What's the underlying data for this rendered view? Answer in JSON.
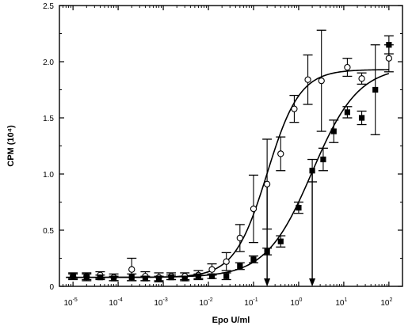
{
  "chart_data": {
    "type": "scatter",
    "title": "",
    "xlabel": "Epo U/ml",
    "ylabel": "CPM (10⁴)",
    "x_scale": "log",
    "xlim": [
      5e-06,
      200
    ],
    "ylim": [
      0,
      2.5
    ],
    "x_ticks": [
      {
        "value": 1e-05,
        "base": "10",
        "exp": "-5"
      },
      {
        "value": 0.0001,
        "base": "10",
        "exp": "-4"
      },
      {
        "value": 0.001,
        "base": "10",
        "exp": "-3"
      },
      {
        "value": 0.01,
        "base": "10",
        "exp": "-2"
      },
      {
        "value": 0.1,
        "base": "10",
        "exp": "-1"
      },
      {
        "value": 1,
        "base": "10",
        "exp": "0"
      },
      {
        "value": 10,
        "base": "10",
        "exp": "1"
      },
      {
        "value": 100,
        "base": "10",
        "exp": "2"
      }
    ],
    "y_ticks": [
      {
        "value": 0,
        "label": "0"
      },
      {
        "value": 0.5,
        "label": "0.5"
      },
      {
        "value": 1.0,
        "label": "1.0"
      },
      {
        "value": 1.5,
        "label": "1.5"
      },
      {
        "value": 2.0,
        "label": "2.0"
      },
      {
        "value": 2.5,
        "label": "2.5"
      }
    ],
    "grid": false,
    "legend": "none",
    "series": [
      {
        "marker": "open-circle",
        "fit": {
          "bottom": 0.08,
          "top": 1.93,
          "ec50": 0.2,
          "hill": 1.2
        },
        "points": [
          {
            "x": 1e-05,
            "y": 0.09,
            "err": 0.03
          },
          {
            "x": 2e-05,
            "y": 0.09,
            "err": 0.03
          },
          {
            "x": 4e-05,
            "y": 0.1,
            "err": 0.03
          },
          {
            "x": 8e-05,
            "y": 0.08,
            "err": 0.03
          },
          {
            "x": 0.0002,
            "y": 0.15,
            "err": 0.1
          },
          {
            "x": 0.0004,
            "y": 0.09,
            "err": 0.04
          },
          {
            "x": 0.0008,
            "y": 0.08,
            "err": 0.04
          },
          {
            "x": 0.0015,
            "y": 0.09,
            "err": 0.03
          },
          {
            "x": 0.003,
            "y": 0.09,
            "err": 0.03
          },
          {
            "x": 0.006,
            "y": 0.1,
            "err": 0.04
          },
          {
            "x": 0.012,
            "y": 0.15,
            "err": 0.05
          },
          {
            "x": 0.025,
            "y": 0.22,
            "err": 0.08
          },
          {
            "x": 0.05,
            "y": 0.43,
            "err": 0.12
          },
          {
            "x": 0.1,
            "y": 0.69,
            "err": 0.3
          },
          {
            "x": 0.2,
            "y": 0.91,
            "err": 0.4
          },
          {
            "x": 0.4,
            "y": 1.18,
            "err": 0.15
          },
          {
            "x": 0.8,
            "y": 1.58,
            "err": 0.12
          },
          {
            "x": 1.6,
            "y": 1.84,
            "err": 0.22
          },
          {
            "x": 3.2,
            "y": 1.83,
            "err": 0.45
          },
          {
            "x": 12,
            "y": 1.95,
            "err": 0.08
          },
          {
            "x": 25,
            "y": 1.85,
            "err": 0.05
          },
          {
            "x": 100,
            "y": 2.03,
            "err": 0.12
          }
        ]
      },
      {
        "marker": "filled-square",
        "fit": {
          "bottom": 0.08,
          "top": 1.96,
          "ec50": 2.0,
          "hill": 0.85
        },
        "points": [
          {
            "x": 1e-05,
            "y": 0.09,
            "err": 0.02
          },
          {
            "x": 2e-05,
            "y": 0.08,
            "err": 0.03
          },
          {
            "x": 4e-05,
            "y": 0.08,
            "err": 0.02
          },
          {
            "x": 8e-05,
            "y": 0.07,
            "err": 0.02
          },
          {
            "x": 0.0002,
            "y": 0.08,
            "err": 0.03
          },
          {
            "x": 0.0004,
            "y": 0.07,
            "err": 0.02
          },
          {
            "x": 0.0008,
            "y": 0.07,
            "err": 0.02
          },
          {
            "x": 0.0015,
            "y": 0.08,
            "err": 0.02
          },
          {
            "x": 0.003,
            "y": 0.07,
            "err": 0.02
          },
          {
            "x": 0.006,
            "y": 0.09,
            "err": 0.02
          },
          {
            "x": 0.012,
            "y": 0.09,
            "err": 0.02
          },
          {
            "x": 0.025,
            "y": 0.09,
            "err": 0.03
          },
          {
            "x": 0.05,
            "y": 0.18,
            "err": 0.03
          },
          {
            "x": 0.1,
            "y": 0.24,
            "err": 0.03
          },
          {
            "x": 0.2,
            "y": 0.31,
            "err": 0.03
          },
          {
            "x": 0.4,
            "y": 0.4,
            "err": 0.05
          },
          {
            "x": 1,
            "y": 0.7,
            "err": 0.05
          },
          {
            "x": 2,
            "y": 1.03,
            "err": 0.1
          },
          {
            "x": 3.5,
            "y": 1.13,
            "err": 0.1
          },
          {
            "x": 6,
            "y": 1.38,
            "err": 0.1
          },
          {
            "x": 12,
            "y": 1.55,
            "err": 0.05
          },
          {
            "x": 25,
            "y": 1.5,
            "err": 0.06
          },
          {
            "x": 50,
            "y": 1.75,
            "err": 0.4
          },
          {
            "x": 100,
            "y": 2.15,
            "err": 0.08
          }
        ]
      }
    ],
    "annotations": [
      {
        "type": "arrow-down",
        "x": 0.2,
        "from_y": 0.91,
        "to_y": 0
      },
      {
        "type": "arrow-down",
        "x": 2.0,
        "from_y": 1.03,
        "to_y": 0
      }
    ]
  }
}
